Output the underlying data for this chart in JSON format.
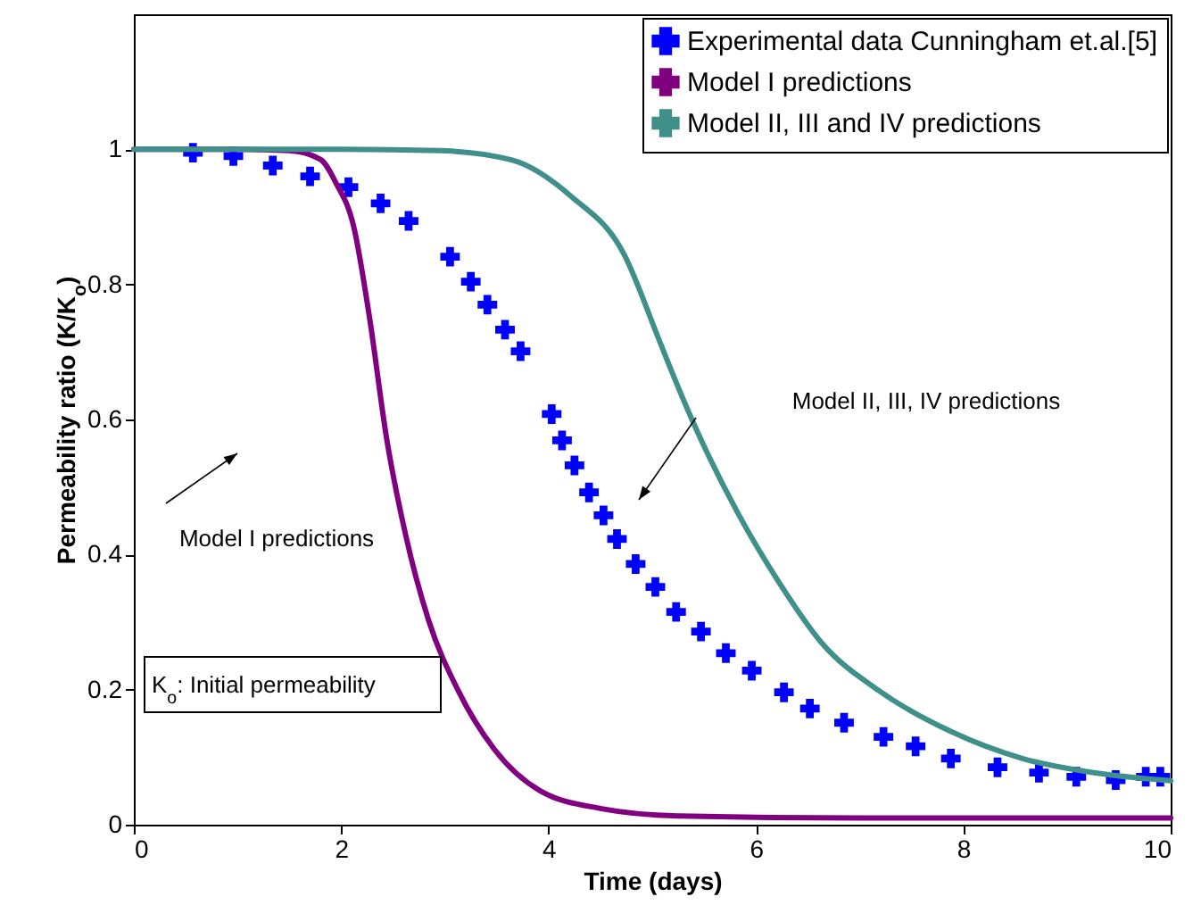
{
  "chart_data": {
    "type": "line",
    "xlabel": "Time (days)",
    "ylabel": "Permeability ratio (K/K$_{o}$)",
    "xlim": [
      0,
      10
    ],
    "ylim": [
      0,
      1.2
    ],
    "xticks": [
      0,
      2,
      4,
      6,
      8,
      10
    ],
    "yticks": [
      0,
      0.2,
      0.4,
      0.6,
      0.8,
      1
    ],
    "grid": false,
    "legend": "top right",
    "series": [
      {
        "name": "Experimental data Cunningham et.al.[5]",
        "type": "scatter",
        "marker": "cross",
        "color": "#0000ff",
        "x": [
          0.57,
          0.96,
          1.34,
          1.7,
          2.07,
          2.38,
          2.65,
          3.05,
          3.25,
          3.41,
          3.58,
          3.73,
          4.03,
          4.13,
          4.25,
          4.39,
          4.53,
          4.66,
          4.84,
          5.03,
          5.23,
          5.47,
          5.71,
          5.96,
          6.27,
          6.52,
          6.85,
          7.23,
          7.54,
          7.88,
          8.33,
          8.73,
          9.09,
          9.47,
          9.76,
          9.9
        ],
        "values": [
          0.995,
          0.99,
          0.976,
          0.96,
          0.944,
          0.92,
          0.894,
          0.841,
          0.804,
          0.77,
          0.733,
          0.701,
          0.608,
          0.569,
          0.532,
          0.492,
          0.458,
          0.423,
          0.386,
          0.352,
          0.315,
          0.286,
          0.254,
          0.228,
          0.196,
          0.172,
          0.151,
          0.13,
          0.116,
          0.098,
          0.085,
          0.077,
          0.071,
          0.066,
          0.071,
          0.071
        ]
      },
      {
        "name": "Model I predictions",
        "type": "line",
        "line_style": "solid",
        "color": "#800080",
        "x": [
          0,
          1,
          1.5,
          1.8,
          1.95,
          2.12,
          2.27,
          2.44,
          2.62,
          2.84,
          3.13,
          3.48,
          3.92,
          4.5,
          5.25,
          7,
          10
        ],
        "values": [
          1,
          1,
          0.998,
          0.985,
          0.95,
          0.886,
          0.754,
          0.57,
          0.43,
          0.304,
          0.198,
          0.111,
          0.05,
          0.024,
          0.013,
          0.01,
          0.01
        ]
      },
      {
        "name": "Model II, III and IV predictions",
        "type": "line",
        "line_style": "solid",
        "color": "#3f8f8a",
        "x": [
          0,
          2,
          2.96,
          3.65,
          4.22,
          4.73,
          5.04,
          5.13,
          5.42,
          5.82,
          6.23,
          6.63,
          7.19,
          7.88,
          8.57,
          9.26,
          10
        ],
        "values": [
          1,
          1,
          0.998,
          0.984,
          0.93,
          0.844,
          0.728,
          0.693,
          0.587,
          0.463,
          0.357,
          0.27,
          0.198,
          0.138,
          0.098,
          0.077,
          0.065
        ]
      }
    ],
    "annotations": [
      "Model I predictions",
      "Model II, III, IV predictions",
      "K$_{o}$: Initial permeability"
    ]
  }
}
